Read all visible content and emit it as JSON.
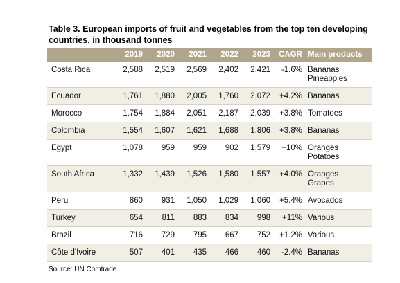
{
  "title": "Table 3. European imports of fruit and vegetables from the top ten developing countries, in thousand tonnes",
  "table": {
    "headers": [
      "",
      "2019",
      "2020",
      "2021",
      "2022",
      "2023",
      "CAGR",
      "Main products"
    ],
    "rows": [
      {
        "country": "Costa Rica",
        "values": [
          "2,588",
          "2,519",
          "2,569",
          "2,402",
          "2,421"
        ],
        "cagr": "-1.6%",
        "products": [
          "Bananas",
          "Pineapples"
        ]
      },
      {
        "country": "Ecuador",
        "values": [
          "1,761",
          "1,880",
          "2,005",
          "1,760",
          "2,072"
        ],
        "cagr": "+4.2%",
        "products": [
          "Bananas"
        ]
      },
      {
        "country": "Morocco",
        "values": [
          "1,754",
          "1,884",
          "2,051",
          "2,187",
          "2,039"
        ],
        "cagr": "+3.8%",
        "products": [
          "Tomatoes"
        ]
      },
      {
        "country": "Colombia",
        "values": [
          "1,554",
          "1,607",
          "1,621",
          "1,688",
          "1,806"
        ],
        "cagr": "+3.8%",
        "products": [
          "Bananas"
        ]
      },
      {
        "country": "Egypt",
        "values": [
          "1,078",
          "959",
          "959",
          "902",
          "1,579"
        ],
        "cagr": "+10%",
        "products": [
          "Oranges",
          "Potatoes"
        ]
      },
      {
        "country": "South Africa",
        "values": [
          "1,332",
          "1,439",
          "1,526",
          "1,580",
          "1,557"
        ],
        "cagr": "+4.0%",
        "products": [
          "Oranges",
          "Grapes"
        ]
      },
      {
        "country": "Peru",
        "values": [
          "860",
          "931",
          "1,050",
          "1,029",
          "1,060"
        ],
        "cagr": "+5.4%",
        "products": [
          "Avocados"
        ]
      },
      {
        "country": "Turkey",
        "values": [
          "654",
          "811",
          "883",
          "834",
          "998"
        ],
        "cagr": "+11%",
        "products": [
          "Various"
        ]
      },
      {
        "country": "Brazil",
        "values": [
          "716",
          "729",
          "795",
          "667",
          "752"
        ],
        "cagr": "+1.2%",
        "products": [
          "Various"
        ]
      },
      {
        "country": "Côte d'Ivoire",
        "values": [
          "507",
          "401",
          "435",
          "466",
          "460"
        ],
        "cagr": "-2.4%",
        "products": [
          "Bananas"
        ]
      }
    ]
  },
  "source": "Source: UN Comtrade"
}
